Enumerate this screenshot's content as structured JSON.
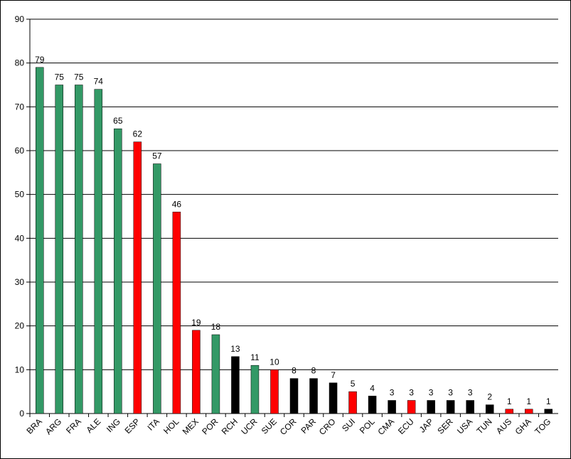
{
  "chart_data": {
    "type": "bar",
    "categories": [
      "BRA",
      "ARG",
      "FRA",
      "ALE",
      "ING",
      "ESP",
      "ITA",
      "HOL",
      "MEX",
      "POR",
      "RCH",
      "UCR",
      "SUE",
      "COR",
      "PAR",
      "CRO",
      "SUI",
      "POL",
      "CMA",
      "ECU",
      "JAP",
      "SER",
      "USA",
      "TUN",
      "AUS",
      "GHA",
      "TOG"
    ],
    "values": [
      79,
      75,
      75,
      74,
      65,
      62,
      57,
      46,
      19,
      18,
      13,
      11,
      10,
      8,
      8,
      7,
      5,
      4,
      3,
      3,
      3,
      3,
      3,
      2,
      1,
      1,
      1
    ],
    "colors": [
      "#339966",
      "#339966",
      "#339966",
      "#339966",
      "#339966",
      "#ff0000",
      "#339966",
      "#ff0000",
      "#ff0000",
      "#339966",
      "#000000",
      "#339966",
      "#ff0000",
      "#000000",
      "#000000",
      "#000000",
      "#ff0000",
      "#000000",
      "#000000",
      "#ff0000",
      "#000000",
      "#000000",
      "#000000",
      "#000000",
      "#ff0000",
      "#ff0000",
      "#000000"
    ],
    "ylim": [
      0,
      90
    ],
    "yticks": [
      0,
      10,
      20,
      30,
      40,
      50,
      60,
      70,
      80,
      90
    ],
    "grid": true
  }
}
